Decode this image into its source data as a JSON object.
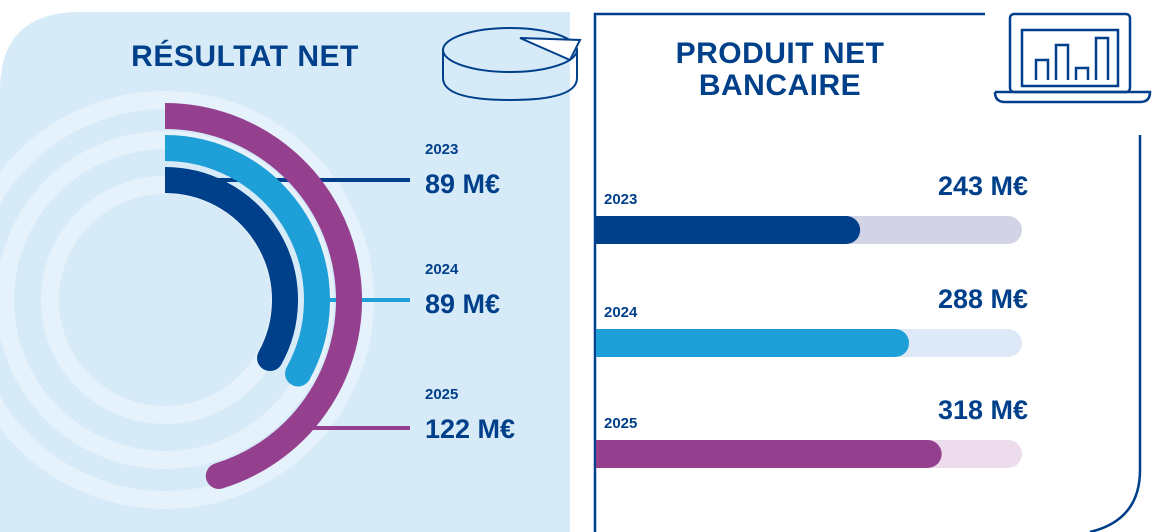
{
  "chart_data": [
    {
      "type": "radial_bar",
      "title": "RÉSULTAT NET",
      "categories": [
        "2023",
        "2024",
        "2025"
      ],
      "values": [
        89,
        89,
        122
      ],
      "value_labels": [
        "89 M€",
        "89 M€",
        "122 M€"
      ],
      "colors": [
        "#003f8a",
        "#1e9fd8",
        "#94408f"
      ]
    },
    {
      "type": "hbar",
      "title": "PRODUIT NET BANCAIRE",
      "categories": [
        "2023",
        "2024",
        "2025"
      ],
      "values": [
        243,
        288,
        318
      ],
      "value_labels": [
        "243 M€",
        "288 M€",
        "318 M€"
      ],
      "colors": [
        "#003f8a",
        "#1e9fd8",
        "#94408f"
      ],
      "track_colors": [
        "#d3d3e6",
        "#dde9f6",
        "#ecdcec"
      ]
    }
  ]
}
